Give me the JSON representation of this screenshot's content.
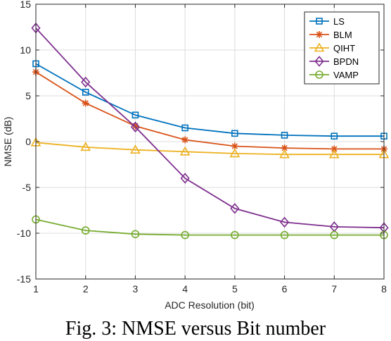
{
  "chart_data": {
    "type": "line",
    "title": "",
    "xlabel": "ADC Resolution (bit)",
    "ylabel": "NMSE (dB)",
    "xlim": [
      1,
      8
    ],
    "ylim": [
      -15,
      15
    ],
    "xticks": [
      1,
      2,
      3,
      4,
      5,
      6,
      7,
      8
    ],
    "yticks": [
      15,
      10,
      5,
      0,
      -5,
      -10,
      -15
    ],
    "grid": true,
    "legend_position": "top-right",
    "x": [
      1,
      2,
      3,
      4,
      5,
      6,
      7,
      8
    ],
    "series": [
      {
        "name": "LS",
        "color": "#0072BD",
        "marker": "square",
        "values": [
          8.5,
          5.4,
          2.9,
          1.5,
          0.9,
          0.7,
          0.6,
          0.6
        ]
      },
      {
        "name": "BLM",
        "color": "#D95319",
        "marker": "asterisk",
        "values": [
          7.6,
          4.2,
          1.7,
          0.2,
          -0.5,
          -0.7,
          -0.8,
          -0.8
        ]
      },
      {
        "name": "QIHT",
        "color": "#EDB120",
        "marker": "triangle",
        "values": [
          -0.1,
          -0.6,
          -0.9,
          -1.1,
          -1.3,
          -1.4,
          -1.4,
          -1.4
        ]
      },
      {
        "name": "BPDN",
        "color": "#7E2F8E",
        "marker": "diamond",
        "values": [
          12.4,
          6.5,
          1.6,
          -4.0,
          -7.3,
          -8.8,
          -9.3,
          -9.4
        ]
      },
      {
        "name": "VAMP",
        "color": "#77AC30",
        "marker": "circle",
        "values": [
          -8.5,
          -9.7,
          -10.1,
          -10.2,
          -10.2,
          -10.2,
          -10.2,
          -10.2
        ]
      }
    ]
  },
  "caption": "Fig. 3: NMSE versus Bit number"
}
